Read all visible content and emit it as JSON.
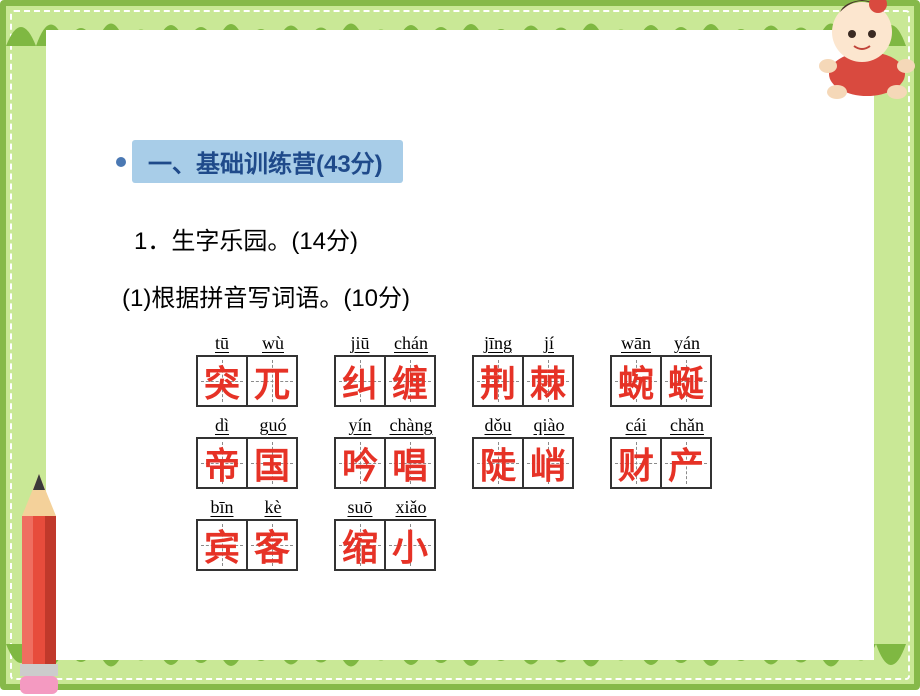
{
  "colors": {
    "border_green": "#86b94a",
    "page_bg": "#c9e896",
    "white": "#ffffff",
    "header_bg": "#a8cde8",
    "header_text": "#1f4a8a",
    "bullet": "#4a78b3",
    "black": "#000000",
    "answer_red": "#e63226",
    "tian_border": "#333333",
    "tian_dash": "#8b8b8b"
  },
  "typography": {
    "header_fontsize": 24,
    "body_fontsize": 24,
    "pinyin_fontsize": 18,
    "hanzi_fontsize": 36
  },
  "header": {
    "title": "一、基础训练营(43分)"
  },
  "lines": {
    "q1": "1．生字乐园。(14分)",
    "q1b": "(1)根据拼音写词语。(10分)"
  },
  "rows": [
    {
      "words": [
        {
          "cells": [
            {
              "pinyin": "tū",
              "han": "突"
            },
            {
              "pinyin": "wù",
              "han": "兀"
            }
          ]
        },
        {
          "cells": [
            {
              "pinyin": "jiū",
              "han": "纠"
            },
            {
              "pinyin": "chán",
              "han": "缠"
            }
          ]
        },
        {
          "cells": [
            {
              "pinyin": "jīng",
              "han": "荆"
            },
            {
              "pinyin": "jí",
              "han": "棘"
            }
          ]
        },
        {
          "cells": [
            {
              "pinyin": "wān",
              "han": "蜿"
            },
            {
              "pinyin": "yán",
              "han": "蜒"
            }
          ]
        }
      ]
    },
    {
      "words": [
        {
          "cells": [
            {
              "pinyin": "dì",
              "han": "帝"
            },
            {
              "pinyin": "guó",
              "han": "国"
            }
          ]
        },
        {
          "cells": [
            {
              "pinyin": "yín",
              "han": "吟"
            },
            {
              "pinyin": "chàng",
              "han": "唱"
            }
          ]
        },
        {
          "cells": [
            {
              "pinyin": "dǒu",
              "han": "陡"
            },
            {
              "pinyin": "qiào",
              "han": "峭"
            }
          ]
        },
        {
          "cells": [
            {
              "pinyin": "cái",
              "han": "财"
            },
            {
              "pinyin": "chǎn",
              "han": "产"
            }
          ]
        }
      ]
    },
    {
      "words": [
        {
          "cells": [
            {
              "pinyin": "bīn",
              "han": "宾"
            },
            {
              "pinyin": "kè",
              "han": "客"
            }
          ]
        },
        {
          "cells": [
            {
              "pinyin": "suō",
              "han": "缩"
            },
            {
              "pinyin": "xiǎo",
              "han": "小"
            }
          ]
        }
      ]
    }
  ]
}
